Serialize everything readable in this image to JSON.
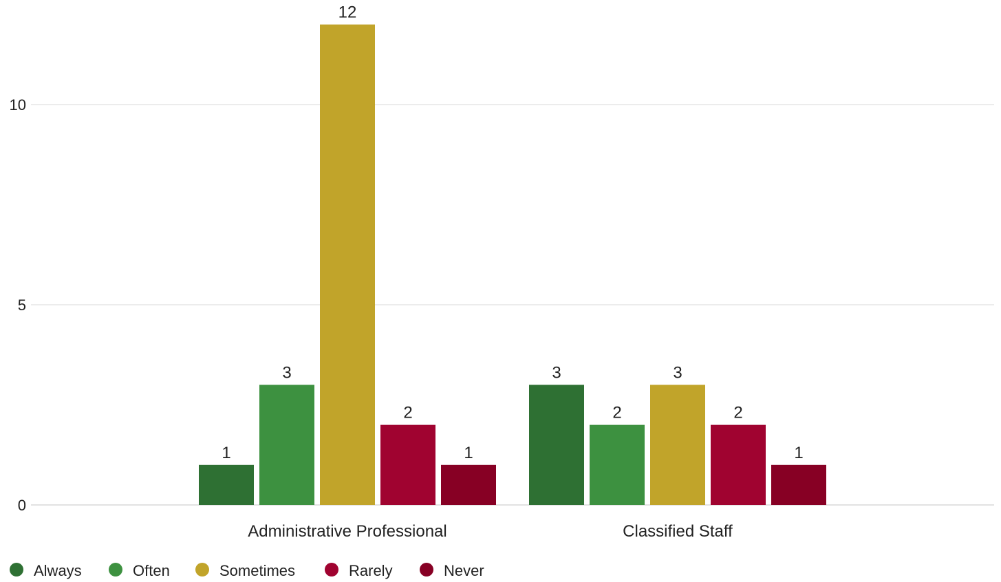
{
  "chart_data": {
    "type": "bar",
    "categories": [
      "Administrative Professional",
      "Classified Staff"
    ],
    "series": [
      {
        "name": "Always",
        "color": "#2e7033",
        "values": [
          1,
          3
        ]
      },
      {
        "name": "Often",
        "color": "#3d9140",
        "values": [
          3,
          2
        ]
      },
      {
        "name": "Sometimes",
        "color": "#c1a42a",
        "values": [
          12,
          3
        ]
      },
      {
        "name": "Rarely",
        "color": "#a00330",
        "values": [
          2,
          2
        ]
      },
      {
        "name": "Never",
        "color": "#870024",
        "values": [
          1,
          1
        ]
      }
    ],
    "y_ticks": [
      0,
      5,
      10
    ],
    "ylim": [
      0,
      12
    ],
    "grid": true,
    "legend_position": "bottom-left",
    "data_labels": true
  }
}
